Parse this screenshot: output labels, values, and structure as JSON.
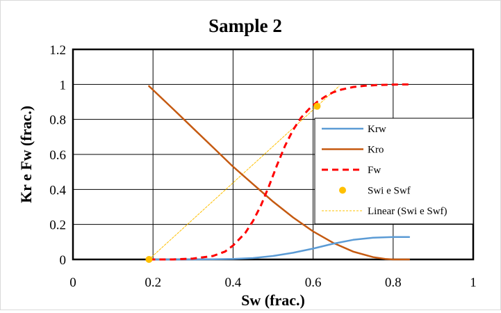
{
  "chart_data": {
    "type": "line",
    "title": "Sample 2",
    "xlabel": "Sw (frac.)",
    "ylabel": "Kr e Fw (frac.)",
    "xlim": [
      0,
      1
    ],
    "ylim": [
      0,
      1.2
    ],
    "x_ticks": [
      "0",
      "0.2",
      "0.4",
      "0.6",
      "0.8",
      "1"
    ],
    "y_ticks": [
      "0",
      "0.2",
      "0.4",
      "0.6",
      "0.8",
      "1",
      "1.2"
    ],
    "grid": true,
    "legend_position": "right",
    "colors": {
      "krw": "#5b9bd5",
      "kro": "#c55a11",
      "fw": "#ff0000",
      "points": "#ffc000",
      "linear": "#ffc000"
    },
    "series": [
      {
        "name": "Krw",
        "style": "solid",
        "x": [
          0.19,
          0.25,
          0.3,
          0.35,
          0.4,
          0.45,
          0.5,
          0.55,
          0.6,
          0.65,
          0.7,
          0.75,
          0.8,
          0.84
        ],
        "y": [
          0,
          0,
          0,
          0.001,
          0.003,
          0.008,
          0.02,
          0.038,
          0.062,
          0.09,
          0.112,
          0.124,
          0.128,
          0.128
        ]
      },
      {
        "name": "Kro",
        "style": "solid",
        "x": [
          0.19,
          0.25,
          0.3,
          0.35,
          0.4,
          0.45,
          0.5,
          0.55,
          0.6,
          0.65,
          0.7,
          0.75,
          0.78,
          0.8,
          0.84
        ],
        "y": [
          0.99,
          0.86,
          0.75,
          0.64,
          0.53,
          0.43,
          0.33,
          0.24,
          0.16,
          0.095,
          0.045,
          0.013,
          0.003,
          0,
          0
        ]
      },
      {
        "name": "Fw",
        "style": "dashed",
        "x": [
          0.19,
          0.25,
          0.3,
          0.35,
          0.38,
          0.4,
          0.43,
          0.45,
          0.47,
          0.49,
          0.51,
          0.53,
          0.55,
          0.57,
          0.59,
          0.61,
          0.63,
          0.65,
          0.67,
          0.7,
          0.73,
          0.76,
          0.8,
          0.84
        ],
        "y": [
          0,
          0,
          0.005,
          0.02,
          0.045,
          0.08,
          0.15,
          0.22,
          0.31,
          0.42,
          0.54,
          0.65,
          0.74,
          0.81,
          0.86,
          0.9,
          0.93,
          0.955,
          0.97,
          0.985,
          0.992,
          0.996,
          0.999,
          1.0
        ]
      },
      {
        "name": "Swi e Swf",
        "style": "markers",
        "x": [
          0.19,
          0.61
        ],
        "y": [
          0,
          0.875
        ]
      },
      {
        "name": "Linear (Swi e Swf)",
        "style": "dotted",
        "x": [
          0.19,
          0.665
        ],
        "y": [
          0,
          0.99
        ]
      }
    ]
  }
}
